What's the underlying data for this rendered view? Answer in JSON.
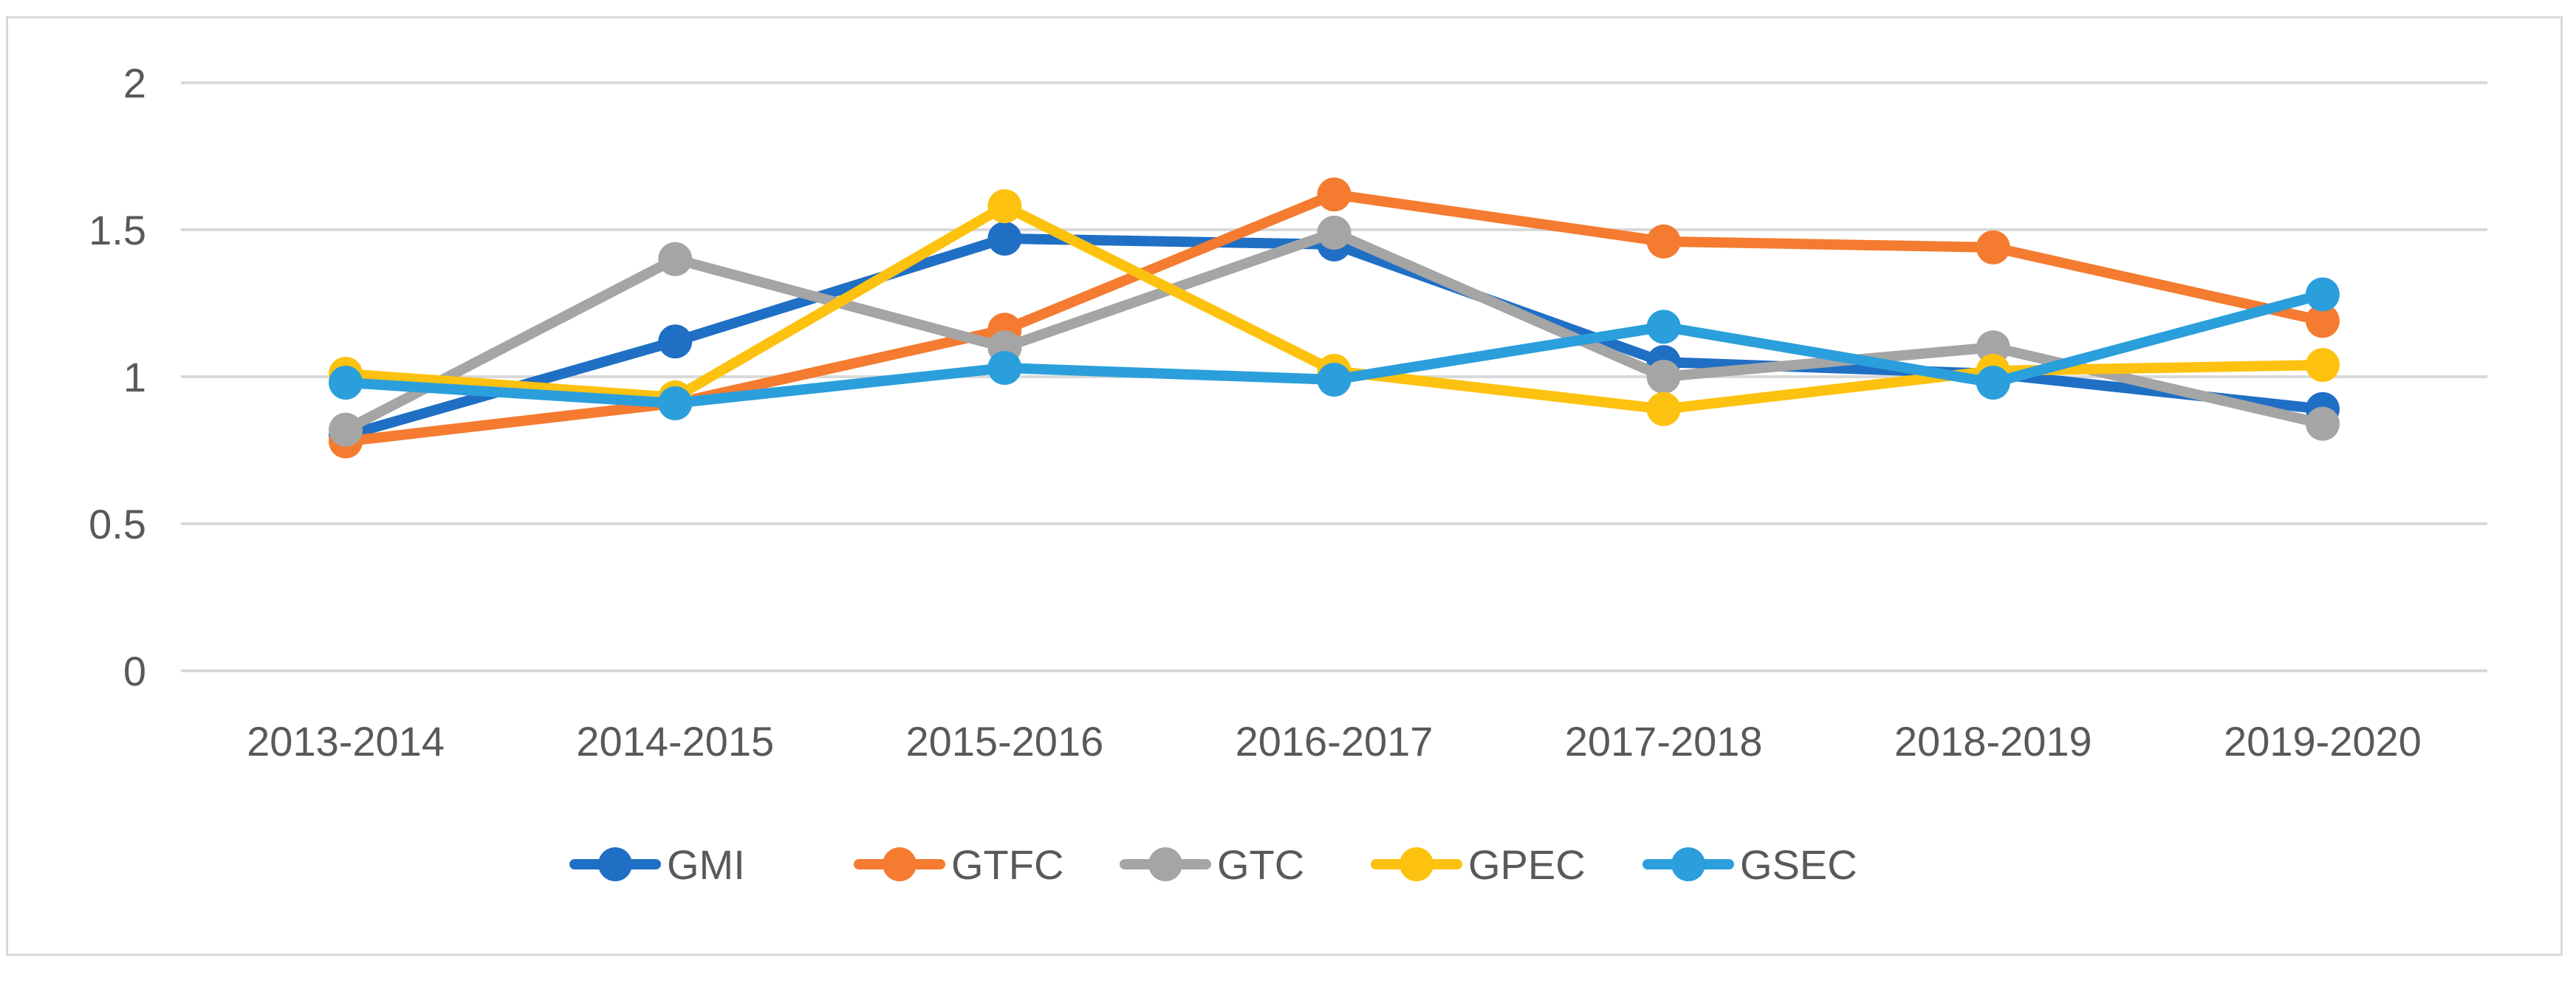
{
  "chart_data": {
    "type": "line",
    "title": "",
    "xlabel": "",
    "ylabel": "",
    "categories": [
      "2013-2014",
      "2014-2015",
      "2015-2016",
      "2016-2017",
      "2017-2018",
      "2018-2019",
      "2019-2020"
    ],
    "ylim": [
      0,
      2
    ],
    "yticks": [
      0,
      0.5,
      1,
      1.5,
      2
    ],
    "ytick_labels": [
      "0",
      "0.5",
      "1",
      "1.5",
      "2"
    ],
    "grid": true,
    "legend_position": "bottom",
    "series": [
      {
        "name": "GMI",
        "color": "#1f6fc5",
        "values": [
          0.8,
          1.12,
          1.47,
          1.45,
          1.05,
          1.01,
          0.89
        ]
      },
      {
        "name": "GTFC",
        "color": "#f47b30",
        "values": [
          0.78,
          0.91,
          1.16,
          1.62,
          1.46,
          1.44,
          1.19
        ]
      },
      {
        "name": "GTC",
        "color": "#a5a5a5",
        "values": [
          0.82,
          1.4,
          1.1,
          1.49,
          1.0,
          1.1,
          0.84
        ]
      },
      {
        "name": "GPEC",
        "color": "#fdc20f",
        "values": [
          1.01,
          0.93,
          1.58,
          1.02,
          0.89,
          1.02,
          1.04
        ]
      },
      {
        "name": "GSEC",
        "color": "#2b9fdb",
        "values": [
          0.98,
          0.91,
          1.03,
          0.99,
          1.17,
          0.98,
          1.28
        ]
      }
    ]
  }
}
